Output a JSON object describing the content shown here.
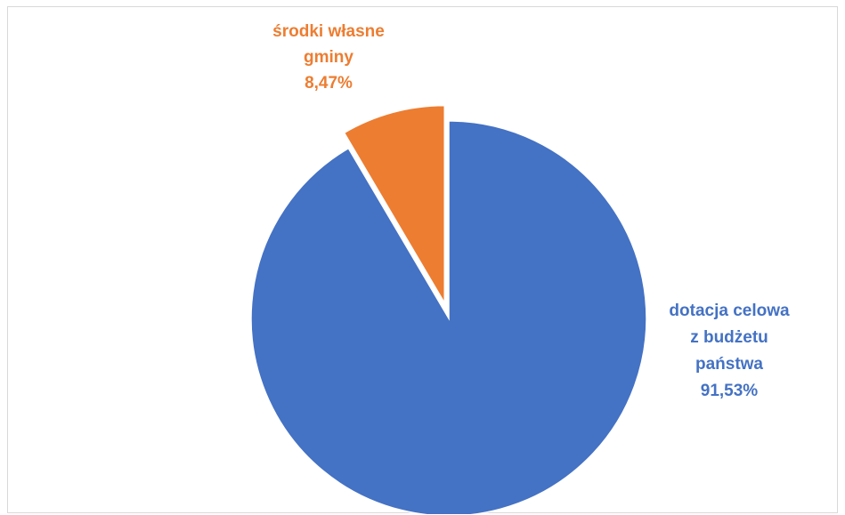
{
  "chart_data": {
    "type": "pie",
    "title": "",
    "slices": [
      {
        "name": "dotacja celowa z budżetu państwa",
        "label_lines": [
          "dotacja celowa",
          "z budżetu",
          "państwa"
        ],
        "value": 91.53,
        "value_label": "91,53%",
        "color": "#4472c4",
        "exploded": false
      },
      {
        "name": "środki własne gminy",
        "label_lines": [
          "środki własne",
          "gminy"
        ],
        "value": 8.47,
        "value_label": "8,47%",
        "color": "#ed7d31",
        "exploded": true
      }
    ],
    "legend": "none",
    "data_labels": "outside"
  }
}
